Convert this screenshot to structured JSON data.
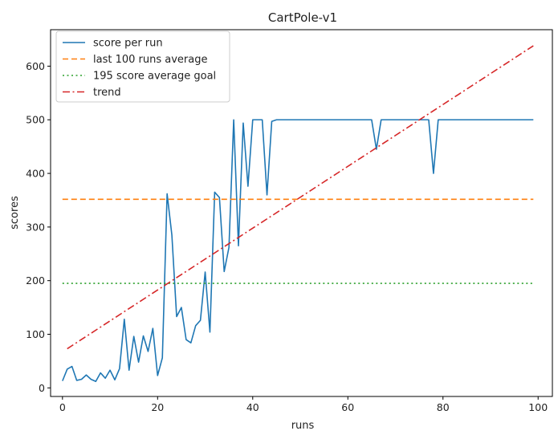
{
  "chart_data": {
    "type": "line",
    "title": "CartPole-v1",
    "xlabel": "runs",
    "ylabel": "scores",
    "xlim": [
      -2.5,
      103
    ],
    "ylim": [
      -16,
      668
    ],
    "x_ticks": [
      0,
      20,
      40,
      60,
      80,
      100
    ],
    "y_ticks": [
      0,
      100,
      200,
      300,
      400,
      500,
      600
    ],
    "grid": false,
    "legend_position": "top-left",
    "series": [
      {
        "name": "score per run",
        "color": "#1f77b4",
        "style": "solid",
        "x": [
          0,
          1,
          2,
          3,
          4,
          5,
          6,
          7,
          8,
          9,
          10,
          11,
          12,
          13,
          14,
          15,
          16,
          17,
          18,
          19,
          20,
          21,
          22,
          23,
          24,
          25,
          26,
          27,
          28,
          29,
          30,
          31,
          32,
          33,
          34,
          35,
          36,
          37,
          38,
          39,
          40,
          41,
          42,
          43,
          44,
          45,
          46,
          47,
          48,
          49,
          50,
          51,
          52,
          53,
          54,
          55,
          56,
          57,
          58,
          59,
          60,
          61,
          62,
          63,
          64,
          65,
          66,
          67,
          68,
          69,
          70,
          71,
          72,
          73,
          74,
          75,
          76,
          77,
          78,
          79,
          80,
          81,
          82,
          83,
          84,
          85,
          86,
          87,
          88,
          89,
          90,
          91,
          92,
          93,
          94,
          95,
          96,
          97,
          98,
          99
        ],
        "values": [
          13,
          35,
          40,
          14,
          16,
          24,
          16,
          12,
          28,
          18,
          33,
          15,
          36,
          128,
          33,
          96,
          48,
          97,
          68,
          111,
          23,
          56,
          362,
          285,
          133,
          150,
          90,
          84,
          116,
          126,
          216,
          104,
          365,
          355,
          217,
          262,
          500,
          265,
          494,
          376,
          500,
          500,
          500,
          360,
          497,
          500,
          500,
          500,
          500,
          500,
          500,
          500,
          500,
          500,
          500,
          500,
          500,
          500,
          500,
          500,
          500,
          500,
          500,
          500,
          500,
          500,
          445,
          500,
          500,
          500,
          500,
          500,
          500,
          500,
          500,
          500,
          500,
          500,
          400,
          500,
          500,
          500,
          500,
          500,
          500,
          500,
          500,
          500,
          500,
          500,
          500,
          500,
          500,
          500,
          500,
          500,
          500,
          500,
          500,
          500
        ]
      },
      {
        "name": "last 100 runs average",
        "color": "#ff7f0e",
        "style": "dashed",
        "x": [
          0,
          99
        ],
        "values": [
          351.7,
          351.7
        ]
      },
      {
        "name": "195 score average goal",
        "color": "#2ca02c",
        "style": "dotted",
        "x": [
          0,
          99
        ],
        "values": [
          195,
          195
        ]
      },
      {
        "name": "trend",
        "color": "#d62728",
        "style": "dashdot",
        "x": [
          1,
          99
        ],
        "values": [
          73,
          638
        ]
      }
    ]
  }
}
